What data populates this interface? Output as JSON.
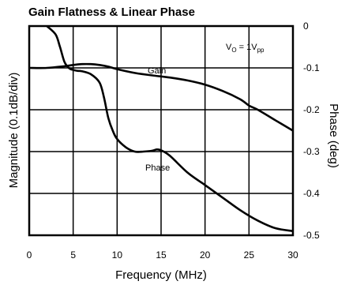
{
  "chart_data": {
    "type": "line",
    "title": "Gain Flatness & Linear Phase",
    "xlabel": "Frequency (MHz)",
    "ylabel_left": "Magnitude (0.1dB/div)",
    "ylabel_right": "Phase (deg)",
    "xlim": [
      0,
      30
    ],
    "ylim_right": [
      -0.5,
      0
    ],
    "grid": true,
    "x_ticks": [
      "0",
      "5",
      "10",
      "15",
      "20",
      "25",
      "30"
    ],
    "right_ticks": [
      "0",
      "-0.1",
      "-0.2",
      "-0.3",
      "-0.4",
      "-0.5"
    ],
    "annotation": {
      "main": "V",
      "sub1": "O",
      "mid": " = 1V",
      "sub2": "pp"
    },
    "series": [
      {
        "name": "Gain",
        "axis": "right",
        "x": [
          0,
          2,
          4,
          5,
          6,
          7,
          8,
          9,
          10,
          12,
          14,
          16,
          18,
          20,
          22,
          24,
          25,
          26,
          28,
          30
        ],
        "y": [
          -0.1,
          -0.1,
          -0.096,
          -0.093,
          -0.091,
          -0.091,
          -0.093,
          -0.097,
          -0.103,
          -0.112,
          -0.118,
          -0.123,
          -0.13,
          -0.14,
          -0.155,
          -0.175,
          -0.19,
          -0.2,
          -0.225,
          -0.25
        ]
      },
      {
        "name": "Phase",
        "axis": "right",
        "x": [
          2.0,
          3.0,
          3.5,
          4.0,
          4.5,
          5.0,
          5.5,
          6.0,
          7.0,
          8.0,
          8.5,
          9.0,
          9.5,
          10.0,
          11.0,
          12.0,
          13.0,
          14.0,
          14.5,
          15.0,
          16.0,
          18.0,
          20.0,
          22.0,
          24.0,
          26.0,
          28.0,
          30.0
        ],
        "y": [
          0.0,
          -0.02,
          -0.05,
          -0.085,
          -0.1,
          -0.105,
          -0.107,
          -0.108,
          -0.115,
          -0.135,
          -0.17,
          -0.22,
          -0.25,
          -0.27,
          -0.29,
          -0.3,
          -0.3,
          -0.298,
          -0.295,
          -0.297,
          -0.31,
          -0.35,
          -0.38,
          -0.41,
          -0.44,
          -0.465,
          -0.483,
          -0.49
        ]
      }
    ],
    "series_labels": {
      "gain": "Gain",
      "phase": "Phase"
    },
    "colors": {
      "line": "#000000",
      "grid": "#000000"
    }
  }
}
